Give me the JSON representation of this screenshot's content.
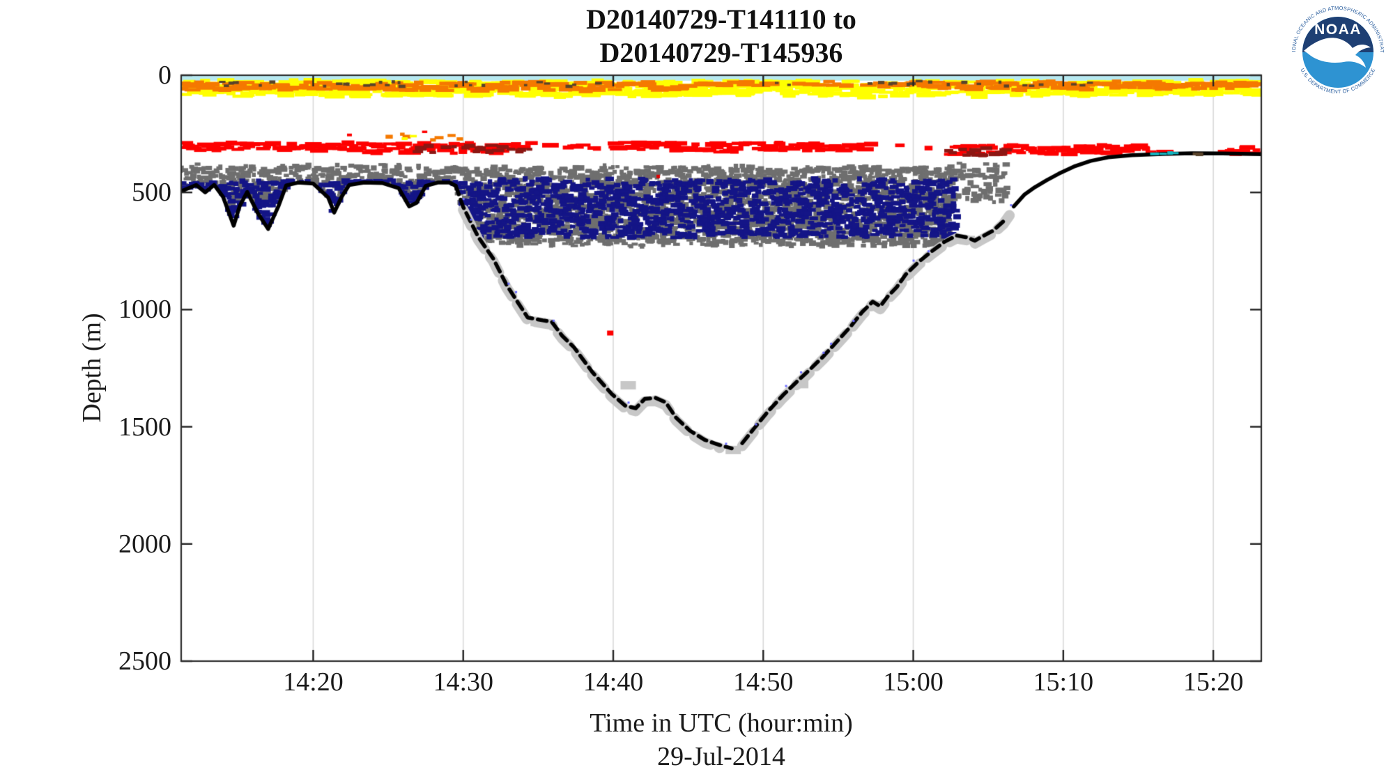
{
  "title": {
    "line1": "D20140729-T141110 to",
    "line2": "D20140729-T145936"
  },
  "logo": {
    "name": "NOAA",
    "arc_top": "NATIONAL OCEANIC AND ATMOSPHERIC ADMINISTRATION",
    "arc_bottom": "U.S. DEPARTMENT OF COMMERCE",
    "dark_blue": "#1e3f73",
    "light_blue": "#2e93d2",
    "arc_text_color": "#2a5e9e"
  },
  "chart_data": {
    "type": "heatmap",
    "subtype": "echosounder-echogram-scatter",
    "title": "D20140729-T141110 to D20140729-T145936",
    "xlabel": "Time in UTC (hour:min)",
    "xlabel2": "29-Jul-2014",
    "ylabel": "Depth (m)",
    "grid": "vertical-only",
    "x_axis": {
      "range_minutes": [
        11.2,
        83.2
      ],
      "reference": "minutes after 14:00 UTC",
      "ticks": [
        {
          "t": 20,
          "label": "14:20"
        },
        {
          "t": 30,
          "label": "14:30"
        },
        {
          "t": 40,
          "label": "14:40"
        },
        {
          "t": 50,
          "label": "14:50"
        },
        {
          "t": 60,
          "label": "15:00"
        },
        {
          "t": 70,
          "label": "15:10"
        },
        {
          "t": 80,
          "label": "15:20"
        }
      ]
    },
    "y_axis": {
      "range": [
        0,
        2500
      ],
      "ticks": [
        0,
        500,
        1000,
        1500,
        2000,
        2500
      ]
    },
    "colors": {
      "frame": "#2a2a2a",
      "gridline": "#d9d9d9",
      "surface_cyan": "#b7e9f0",
      "yellow": "#ffff00",
      "orange": "#f57900",
      "dark_speckle": "#58432a",
      "red": "#fe0000",
      "dark_red": "#8c1713",
      "gray": "#6f6f6f",
      "navy": "#141587",
      "light_gray": "#c7c7c7",
      "blue_pixel": "#6b6bff",
      "teal": "#12b8c4",
      "seafloor": "#000000"
    },
    "seafloor_line": {
      "name": "seafloor-echo",
      "color": "#000000",
      "points": [
        [
          11.2,
          495
        ],
        [
          12.2,
          468
        ],
        [
          12.8,
          500
        ],
        [
          13.4,
          468
        ],
        [
          14.0,
          520
        ],
        [
          14.7,
          642
        ],
        [
          15.1,
          558
        ],
        [
          15.6,
          498
        ],
        [
          16.3,
          588
        ],
        [
          17.0,
          656
        ],
        [
          17.7,
          556
        ],
        [
          18.2,
          470
        ],
        [
          19.0,
          458
        ],
        [
          20.0,
          462
        ],
        [
          21.0,
          522
        ],
        [
          21.4,
          586
        ],
        [
          21.9,
          518
        ],
        [
          22.4,
          468
        ],
        [
          23.4,
          458
        ],
        [
          24.6,
          460
        ],
        [
          25.7,
          482
        ],
        [
          26.4,
          560
        ],
        [
          26.9,
          544
        ],
        [
          27.5,
          472
        ],
        [
          28.3,
          458
        ],
        [
          29.1,
          458
        ],
        [
          29.5,
          472
        ],
        [
          30.0,
          562
        ],
        [
          31.0,
          690
        ],
        [
          32.0,
          782
        ],
        [
          32.9,
          896
        ],
        [
          33.7,
          975
        ],
        [
          34.3,
          1034
        ],
        [
          35.3,
          1046
        ],
        [
          35.9,
          1052
        ],
        [
          36.6,
          1112
        ],
        [
          37.4,
          1162
        ],
        [
          38.6,
          1266
        ],
        [
          39.9,
          1360
        ],
        [
          40.8,
          1410
        ],
        [
          41.5,
          1421
        ],
        [
          42.1,
          1381
        ],
        [
          42.8,
          1376
        ],
        [
          43.5,
          1396
        ],
        [
          44.2,
          1462
        ],
        [
          45.1,
          1516
        ],
        [
          46.1,
          1556
        ],
        [
          47.1,
          1578
        ],
        [
          47.9,
          1592
        ],
        [
          48.6,
          1570
        ],
        [
          49.4,
          1506
        ],
        [
          50.3,
          1436
        ],
        [
          51.3,
          1366
        ],
        [
          52.2,
          1310
        ],
        [
          53.1,
          1256
        ],
        [
          54.0,
          1200
        ],
        [
          55.0,
          1130
        ],
        [
          55.8,
          1074
        ],
        [
          56.6,
          1010
        ],
        [
          57.3,
          966
        ],
        [
          57.8,
          986
        ],
        [
          58.3,
          944
        ],
        [
          58.9,
          904
        ],
        [
          59.5,
          850
        ],
        [
          60.4,
          794
        ],
        [
          61.3,
          748
        ],
        [
          62.1,
          710
        ],
        [
          62.9,
          684
        ],
        [
          63.6,
          692
        ],
        [
          64.1,
          706
        ],
        [
          64.6,
          688
        ],
        [
          65.3,
          664
        ],
        [
          66.0,
          624
        ],
        [
          66.7,
          560
        ],
        [
          67.4,
          510
        ],
        [
          68.1,
          478
        ],
        [
          68.9,
          448
        ],
        [
          69.7,
          420
        ],
        [
          70.7,
          390
        ],
        [
          71.8,
          366
        ],
        [
          73.0,
          350
        ],
        [
          74.6,
          341
        ],
        [
          76.6,
          336
        ],
        [
          78.6,
          333
        ],
        [
          80.6,
          334
        ],
        [
          83.2,
          337
        ]
      ],
      "dashed_ranges": [
        [
          29.5,
          48.2
        ],
        [
          48.2,
          66.5
        ]
      ],
      "deepest_point": {
        "t_label": "14:48",
        "depth_m": 1592
      }
    },
    "layers": [
      {
        "name": "surface-line-cyan",
        "color": "#b7e9f0",
        "solid_strip": true,
        "segments": [
          [
            11.2,
            83.2,
            2,
            23,
            1
          ]
        ]
      },
      {
        "name": "surface-scatter-yellow",
        "color": "#ffff00",
        "size": [
          12,
          30,
          4,
          8
        ],
        "step": 0.22,
        "top_jitter": 6,
        "bottom_jitter": 14,
        "segments": [
          [
            11.2,
            83.2,
            24,
            86,
            0.78
          ]
        ]
      },
      {
        "name": "surface-scatter-orange",
        "color": "#f57900",
        "size": [
          12,
          28,
          4,
          7
        ],
        "step": 0.22,
        "top_jitter": 4,
        "bottom_jitter": 8,
        "segments": [
          [
            11.2,
            45,
            30,
            64,
            0.8
          ],
          [
            45,
            61,
            27,
            46,
            0.45
          ],
          [
            61,
            83.2,
            28,
            62,
            0.75
          ]
        ]
      },
      {
        "name": "surface-speckles-dark",
        "color": "#58432a",
        "size": [
          4,
          10,
          3,
          5
        ],
        "step": 0.3,
        "segments": [
          [
            14,
            40,
            27,
            46,
            0.3
          ],
          [
            40,
            56,
            29,
            42,
            0.1
          ],
          [
            56,
            76,
            27,
            44,
            0.28
          ]
        ]
      },
      {
        "name": "orange-patches-above-red",
        "color": "#f57900",
        "size": [
          6,
          14,
          4,
          6
        ],
        "step": 0.3,
        "segments": [
          [
            24.5,
            30.2,
            250,
            278,
            0.3
          ]
        ]
      },
      {
        "name": "yellow-patches-above-red",
        "color": "#ffff00",
        "size": [
          5,
          12,
          3,
          5
        ],
        "step": 0.3,
        "segments": [
          [
            25.2,
            29.6,
            252,
            272,
            0.18
          ]
        ]
      },
      {
        "name": "red-speckles-above",
        "color": "#fe0000",
        "size": [
          4,
          9,
          3,
          5
        ],
        "step": 0.35,
        "segments": [
          [
            19,
            35,
            240,
            268,
            0.06
          ]
        ]
      },
      {
        "name": "scatter-red",
        "color": "#fe0000",
        "size": [
          10,
          26,
          4,
          7
        ],
        "step": 0.2,
        "segments": [
          [
            11.2,
            23.5,
            287,
            320,
            0.8
          ],
          [
            23.5,
            33.5,
            290,
            332,
            0.75
          ],
          [
            33.5,
            40,
            287,
            320,
            0.2
          ],
          [
            40,
            52.5,
            288,
            326,
            0.75
          ],
          [
            52.5,
            57.5,
            290,
            322,
            0.4
          ],
          [
            57.5,
            62.5,
            292,
            322,
            0.18
          ],
          [
            62.5,
            71,
            298,
            338,
            0.7
          ],
          [
            71,
            75.5,
            300,
            340,
            0.65
          ],
          [
            75.5,
            80.8,
            305,
            336,
            0.2
          ],
          [
            80.8,
            83.2,
            308,
            336,
            0.55
          ]
        ]
      },
      {
        "name": "scatter-darkred",
        "color": "#8c1713",
        "size": [
          8,
          18,
          4,
          7
        ],
        "step": 0.25,
        "segments": [
          [
            26.5,
            34.5,
            298,
            330,
            0.35
          ],
          [
            62.5,
            66.5,
            312,
            342,
            0.4
          ]
        ]
      },
      {
        "name": "scatter-gray",
        "color": "#6f6f6f",
        "size": [
          5,
          12,
          4,
          8
        ],
        "step": 0.15,
        "clip_to_seafloor": true,
        "clip_pad": 6,
        "top_jitter": 16,
        "bottom_jitter": 10,
        "segments": [
          [
            11.2,
            29.5,
            386,
            548,
            0.7
          ],
          [
            29.5,
            62.5,
            390,
            726,
            0.78
          ],
          [
            62.5,
            66.4,
            378,
            540,
            0.45
          ]
        ]
      },
      {
        "name": "scatter-navy",
        "color": "#141587",
        "size": [
          6,
          14,
          4,
          8
        ],
        "step": 0.15,
        "clip_to_seafloor": true,
        "clip_pad": 3,
        "top_jitter": 14,
        "bottom_jitter": 6,
        "segments": [
          [
            11.2,
            29.5,
            452,
            1600,
            0.7
          ],
          [
            29.5,
            62.8,
            446,
            692,
            0.6
          ]
        ]
      },
      {
        "name": "slope-deposit-lightgray",
        "color": "#c7c7c7",
        "stroke_along_profile": [
          [
            29.8,
            47.6
          ],
          [
            48.4,
            67.0
          ]
        ],
        "stroke_width": 15,
        "blobs": [
          [
            35.0,
            1050
          ],
          [
            42.4,
            1392
          ],
          [
            48.0,
            1596
          ],
          [
            57.5,
            978
          ],
          [
            63.6,
            700
          ],
          [
            41.0,
            1320
          ],
          [
            52.5,
            1315
          ]
        ]
      },
      {
        "name": "slope-blue-pixels",
        "color": "#6b6bff",
        "post_seafloor": true,
        "along_profile": [
          30,
          67
        ],
        "size": [
          3,
          4,
          3,
          4
        ],
        "step": 0.5,
        "density": 0.25
      },
      {
        "name": "plateau-teal-dashes",
        "color": "#12b8c4",
        "post_seafloor": true,
        "size": [
          8,
          16,
          3,
          5
        ],
        "step": 0.25,
        "segments": [
          [
            75.3,
            77.6,
            328,
            340,
            0.5
          ]
        ]
      },
      {
        "name": "plateau-brown-dashes",
        "color": "#58432a",
        "post_seafloor": true,
        "size": [
          8,
          16,
          3,
          5
        ],
        "step": 0.25,
        "segments": [
          [
            78.2,
            80.5,
            326,
            340,
            0.5
          ]
        ]
      }
    ],
    "annotations": [
      {
        "name": "isolated-red-mark",
        "t": 39.8,
        "depth": 1100,
        "w": 9,
        "h": 7,
        "color": "#fe0000"
      },
      {
        "name": "red-speck-in-gray",
        "t": 43.0,
        "depth": 432,
        "w": 5,
        "h": 5,
        "color": "#e00000"
      }
    ]
  }
}
